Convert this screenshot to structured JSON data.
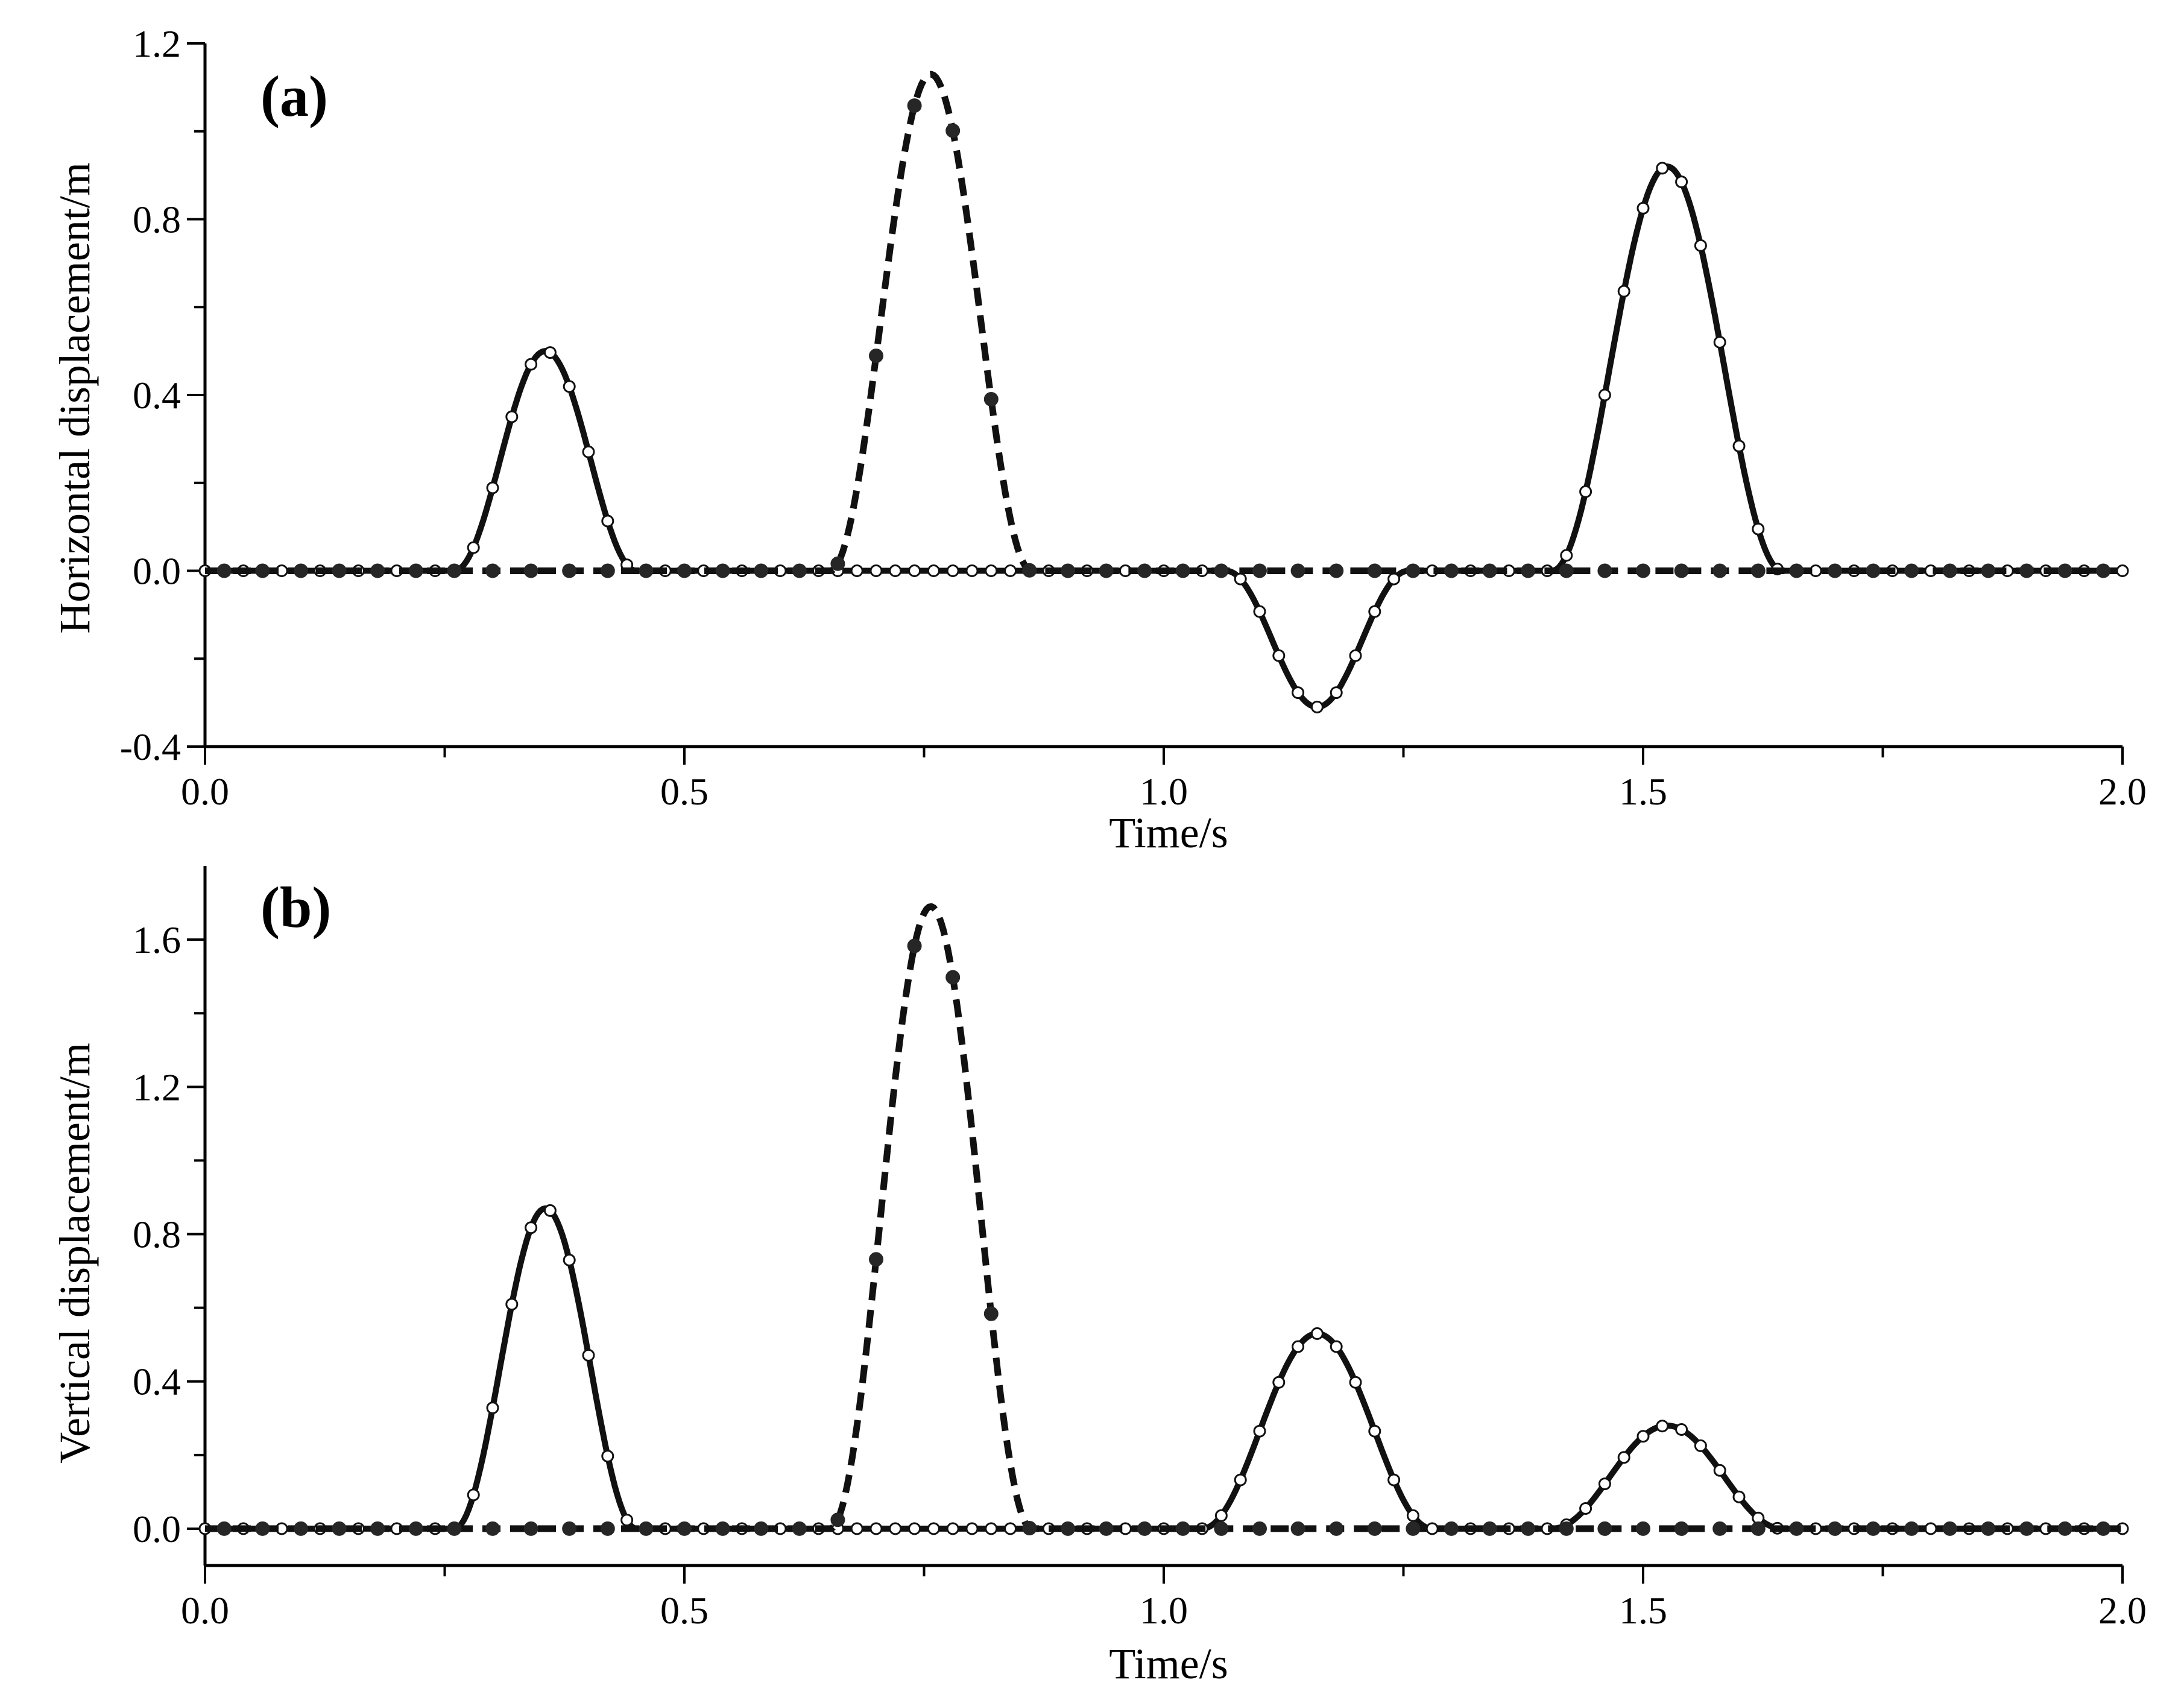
{
  "colors": {
    "axis": "#000000",
    "line": "#111111",
    "filled_marker": "#262626",
    "open_marker": "#ffffff"
  },
  "chart_data": [
    {
      "type": "line",
      "panel_label": "(a)",
      "title": "",
      "xlabel": "Time/s",
      "ylabel": "Horizontal displacement/m",
      "xlim": [
        0,
        2.0
      ],
      "ylim": [
        -0.4,
        1.2
      ],
      "xticks": [
        "0.0",
        "0.5",
        "1.0",
        "1.5",
        "2.0"
      ],
      "yticks": [
        "-0.4",
        "0.0",
        "0.4",
        "0.8",
        "1.2"
      ],
      "grid": false,
      "legend": "none",
      "series": [
        {
          "style": "solid-open-circles",
          "pulses": [
            {
              "t0": 0.355,
              "amp": 0.5,
              "halfwidth": 0.095
            },
            {
              "t0": 1.16,
              "amp": -0.31,
              "halfwidth": 0.095
            },
            {
              "t0": 1.525,
              "amp": 0.92,
              "halfwidth": 0.12
            }
          ]
        },
        {
          "style": "dashed-filled-circles",
          "pulses": [
            {
              "t0": 0.757,
              "amp": 1.13,
              "halfwidth": 0.105
            }
          ]
        }
      ]
    },
    {
      "type": "line",
      "panel_label": "(b)",
      "title": "",
      "xlabel": "Time/s",
      "ylabel": "Vertical displacement/m",
      "xlim": [
        0,
        2.0
      ],
      "ylim": [
        -0.1,
        1.8
      ],
      "xticks": [
        "0.0",
        "0.5",
        "1.0",
        "1.5",
        "2.0"
      ],
      "yticks": [
        "0.0",
        "0.4",
        "0.8",
        "1.2",
        "1.6"
      ],
      "grid": false,
      "legend": "none",
      "series": [
        {
          "style": "solid-open-circles",
          "pulses": [
            {
              "t0": 0.355,
              "amp": 0.87,
              "halfwidth": 0.095
            },
            {
              "t0": 1.16,
              "amp": 0.53,
              "halfwidth": 0.12
            },
            {
              "t0": 1.525,
              "amp": 0.28,
              "halfwidth": 0.12
            }
          ]
        },
        {
          "style": "dashed-filled-circles",
          "pulses": [
            {
              "t0": 0.757,
              "amp": 1.69,
              "halfwidth": 0.105
            }
          ]
        }
      ]
    }
  ]
}
